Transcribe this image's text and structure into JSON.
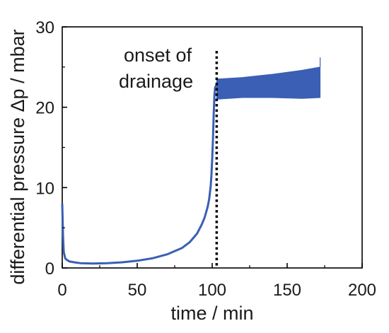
{
  "chart_data": {
    "type": "line",
    "xlabel": "time / min",
    "ylabel": "differential pressure Δp / mbar",
    "xlim": [
      0,
      200
    ],
    "ylim": [
      0,
      30
    ],
    "xticks": [
      0,
      50,
      100,
      150,
      200
    ],
    "yticks": [
      0,
      10,
      20,
      30
    ],
    "grid": false,
    "colors": {
      "series": "#3a5fb4",
      "marker_line": "#000000",
      "axes": "#000000"
    },
    "annotation": {
      "line1": "onset of",
      "line2": "drainage",
      "x": 103
    },
    "series": [
      {
        "x": [
          0,
          0.5,
          1,
          2,
          3,
          5,
          8,
          12,
          20,
          30,
          40,
          50,
          60,
          70,
          80,
          85,
          90,
          93,
          95,
          97,
          98,
          99,
          99.5,
          100,
          100.5,
          101,
          101.5,
          102,
          103
        ],
        "y": [
          8.0,
          4.0,
          2.0,
          1.2,
          1.0,
          0.8,
          0.7,
          0.6,
          0.55,
          0.6,
          0.7,
          0.9,
          1.2,
          1.7,
          2.5,
          3.2,
          4.3,
          5.4,
          6.3,
          7.6,
          8.6,
          10.2,
          11.5,
          13.5,
          16.0,
          19.0,
          21.5,
          22.5,
          22.8
        ]
      },
      {
        "band": true,
        "x": [
          103,
          120,
          140,
          160,
          172
        ],
        "y_upper": [
          23.5,
          23.7,
          24.1,
          24.6,
          25.0
        ],
        "y_lower": [
          21.0,
          21.2,
          21.2,
          21.1,
          21.2
        ],
        "spike_x": 172,
        "spike_y": 26.2
      }
    ]
  }
}
